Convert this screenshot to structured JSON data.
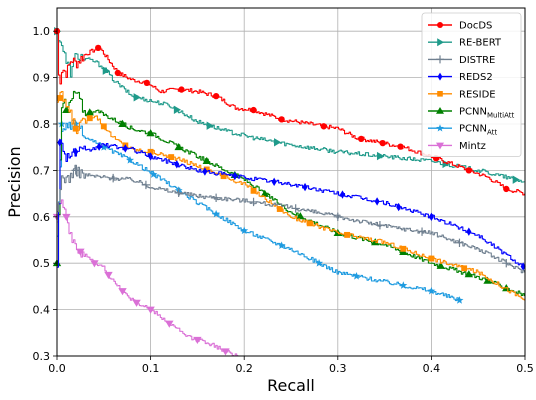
{
  "chart_data": {
    "type": "line",
    "xlabel": "Recall",
    "ylabel": "Precision",
    "xlim": [
      0,
      0.5
    ],
    "ylim": [
      0.3,
      1.05
    ],
    "xticks": [
      0.0,
      0.1,
      0.2,
      0.3,
      0.4,
      0.5
    ],
    "xtick_labels": [
      "0.0",
      "0.1",
      "0.2",
      "0.3",
      "0.4",
      "0.5"
    ],
    "yticks": [
      0.3,
      0.4,
      0.5,
      0.6,
      0.7,
      0.8,
      0.9,
      1.0
    ],
    "ytick_labels": [
      "0.3",
      "0.4",
      "0.5",
      "0.6",
      "0.7",
      "0.8",
      "0.9",
      "1.0"
    ],
    "grid": true,
    "legend_position": "top-right",
    "series": [
      {
        "name": "DocDS",
        "legend_label": {
          "main": "DocDS",
          "sub": ""
        },
        "color": "#ff0000",
        "marker": "circle",
        "x": [
          0.0,
          0.002,
          0.005,
          0.01,
          0.015,
          0.02,
          0.03,
          0.045,
          0.065,
          0.08,
          0.095,
          0.11,
          0.13,
          0.15,
          0.17,
          0.19,
          0.21,
          0.24,
          0.27,
          0.3,
          0.32,
          0.345,
          0.37,
          0.4,
          0.42,
          0.44,
          0.46,
          0.48,
          0.5
        ],
        "y": [
          1.0,
          0.88,
          0.92,
          0.91,
          0.94,
          0.93,
          0.95,
          0.965,
          0.91,
          0.895,
          0.89,
          0.87,
          0.875,
          0.87,
          0.86,
          0.835,
          0.83,
          0.81,
          0.8,
          0.79,
          0.77,
          0.76,
          0.75,
          0.73,
          0.715,
          0.7,
          0.685,
          0.66,
          0.65
        ],
        "marker_x": [
          0.0,
          0.044,
          0.065,
          0.096,
          0.133,
          0.17,
          0.21,
          0.24,
          0.285,
          0.325,
          0.348,
          0.367,
          0.405,
          0.44,
          0.48
        ]
      },
      {
        "name": "RE-BERT",
        "legend_label": {
          "main": "RE-BERT",
          "sub": ""
        },
        "color": "#1f9a8a",
        "marker": "triangle-right",
        "x": [
          0.0,
          0.005,
          0.01,
          0.015,
          0.02,
          0.03,
          0.04,
          0.05,
          0.06,
          0.08,
          0.1,
          0.12,
          0.15,
          0.18,
          0.21,
          0.25,
          0.3,
          0.35,
          0.4,
          0.45,
          0.5
        ],
        "y": [
          1.0,
          0.97,
          0.93,
          0.91,
          0.95,
          0.94,
          0.935,
          0.92,
          0.895,
          0.86,
          0.85,
          0.84,
          0.805,
          0.785,
          0.77,
          0.755,
          0.74,
          0.73,
          0.72,
          0.7,
          0.675
        ],
        "marker_x": [
          0.0,
          0.052,
          0.085,
          0.128,
          0.163,
          0.235,
          0.345,
          0.415,
          0.49
        ]
      },
      {
        "name": "DISTRE",
        "legend_label": {
          "main": "DISTRE",
          "sub": ""
        },
        "color": "#708090",
        "marker": "plus",
        "x": [
          0.0,
          0.005,
          0.01,
          0.02,
          0.03,
          0.05,
          0.08,
          0.1,
          0.12,
          0.15,
          0.2,
          0.25,
          0.3,
          0.35,
          0.4,
          0.45,
          0.5
        ],
        "y": [
          0.6,
          0.69,
          0.68,
          0.7,
          0.69,
          0.685,
          0.68,
          0.665,
          0.655,
          0.645,
          0.635,
          0.62,
          0.6,
          0.58,
          0.565,
          0.53,
          0.48
        ],
        "marker_x": [
          0.02,
          0.06,
          0.095,
          0.13,
          0.17,
          0.21,
          0.255,
          0.3,
          0.345,
          0.39,
          0.43,
          0.48
        ]
      },
      {
        "name": "REDS2",
        "legend_label": {
          "main": "REDS2",
          "sub": ""
        },
        "color": "#0000ff",
        "marker": "diamond",
        "x": [
          0.0,
          0.003,
          0.01,
          0.02,
          0.03,
          0.05,
          0.08,
          0.1,
          0.15,
          0.2,
          0.25,
          0.3,
          0.35,
          0.4,
          0.45,
          0.5
        ],
        "y": [
          0.5,
          0.76,
          0.73,
          0.74,
          0.74,
          0.755,
          0.745,
          0.73,
          0.7,
          0.685,
          0.67,
          0.65,
          0.63,
          0.6,
          0.56,
          0.49
        ],
        "marker_x": [
          0.003,
          0.02,
          0.045,
          0.073,
          0.1,
          0.128,
          0.158,
          0.19,
          0.232,
          0.265,
          0.305,
          0.342,
          0.365,
          0.4,
          0.44,
          0.498
        ]
      },
      {
        "name": "RESIDE",
        "legend_label": {
          "main": "RESIDE",
          "sub": ""
        },
        "color": "#ff8c00",
        "marker": "square",
        "x": [
          0.0,
          0.005,
          0.01,
          0.02,
          0.04,
          0.06,
          0.08,
          0.1,
          0.12,
          0.15,
          0.2,
          0.25,
          0.3,
          0.35,
          0.4,
          0.45,
          0.5
        ],
        "y": [
          0.85,
          0.86,
          0.84,
          0.79,
          0.82,
          0.77,
          0.745,
          0.74,
          0.73,
          0.71,
          0.67,
          0.6,
          0.565,
          0.545,
          0.51,
          0.48,
          0.42
        ],
        "marker_x": [
          0.003,
          0.02,
          0.035,
          0.05,
          0.073,
          0.1,
          0.122,
          0.16,
          0.178,
          0.21,
          0.238,
          0.27,
          0.31,
          0.37,
          0.4,
          0.435
        ]
      },
      {
        "name": "PCNN_MultiAtt",
        "legend_label": {
          "main": "PCNN",
          "sub": "MultiAtt"
        },
        "color": "#008000",
        "marker": "triangle-up",
        "x": [
          0.0,
          0.005,
          0.01,
          0.02,
          0.03,
          0.04,
          0.06,
          0.08,
          0.1,
          0.12,
          0.15,
          0.2,
          0.25,
          0.3,
          0.35,
          0.4,
          0.45,
          0.5
        ],
        "y": [
          0.5,
          0.86,
          0.83,
          0.87,
          0.82,
          0.83,
          0.81,
          0.79,
          0.78,
          0.76,
          0.73,
          0.68,
          0.61,
          0.565,
          0.54,
          0.5,
          0.47,
          0.43
        ],
        "marker_x": [
          0.0,
          0.01,
          0.035,
          0.07,
          0.1,
          0.13,
          0.16,
          0.19,
          0.222,
          0.26,
          0.3,
          0.34,
          0.37,
          0.41,
          0.44,
          0.46,
          0.48
        ]
      },
      {
        "name": "PCNN_Att",
        "legend_label": {
          "main": "PCNN",
          "sub": "Att"
        },
        "color": "#1e9be0",
        "marker": "star",
        "x": [
          0.0,
          0.005,
          0.01,
          0.02,
          0.03,
          0.05,
          0.08,
          0.1,
          0.12,
          0.15,
          0.2,
          0.25,
          0.3,
          0.35,
          0.4,
          0.43
        ],
        "y": [
          0.55,
          0.8,
          0.79,
          0.8,
          0.77,
          0.75,
          0.72,
          0.695,
          0.67,
          0.63,
          0.57,
          0.53,
          0.48,
          0.46,
          0.44,
          0.42
        ],
        "marker_x": [
          0.005,
          0.02,
          0.05,
          0.078,
          0.103,
          0.13,
          0.17,
          0.2,
          0.24,
          0.28,
          0.32,
          0.37,
          0.4,
          0.43
        ]
      },
      {
        "name": "Mintz",
        "legend_label": {
          "main": "Mintz",
          "sub": ""
        },
        "color": "#da70d6",
        "marker": "triangle-down",
        "x": [
          0.0,
          0.005,
          0.01,
          0.015,
          0.02,
          0.03,
          0.04,
          0.05,
          0.06,
          0.07,
          0.08,
          0.09,
          0.1,
          0.12,
          0.14,
          0.16,
          0.18,
          0.195
        ],
        "y": [
          0.6,
          0.64,
          0.6,
          0.55,
          0.53,
          0.52,
          0.5,
          0.49,
          0.46,
          0.44,
          0.42,
          0.41,
          0.4,
          0.37,
          0.34,
          0.33,
          0.31,
          0.3
        ],
        "marker_x": [
          0.0,
          0.01,
          0.025,
          0.04,
          0.055,
          0.07,
          0.085,
          0.1,
          0.12,
          0.15,
          0.18
        ]
      }
    ]
  }
}
